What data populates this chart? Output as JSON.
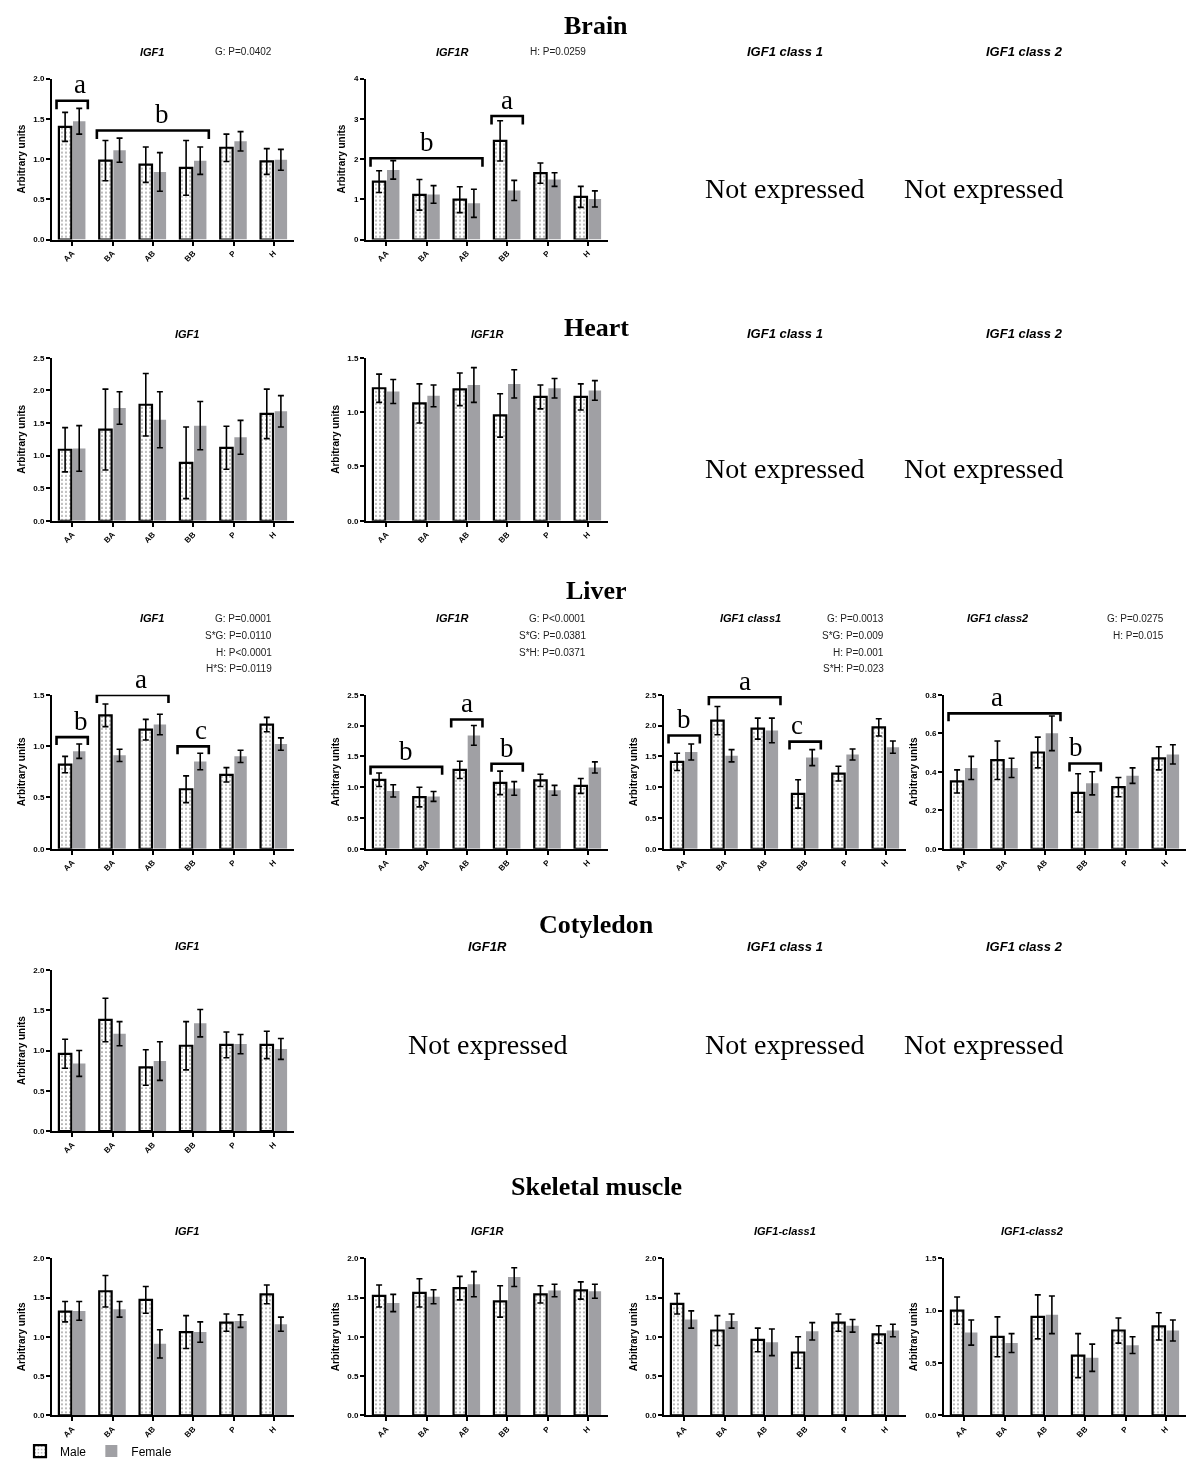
{
  "chart_data": [
    {
      "type": "other",
      "title": "Brain"
    },
    {
      "type": "bar",
      "subtitle": "IGF1",
      "ylabel": "Arbitrary units",
      "categories": [
        "AA",
        "BA",
        "AB",
        "BB",
        "P",
        "H"
      ],
      "ylim": [
        0,
        2
      ],
      "yticks": [
        {
          "value": 0,
          "label": "0.0"
        },
        0.5,
        {
          "value": 1,
          "label": "1.0"
        },
        1.5,
        {
          "value": 2,
          "label": "2.0"
        }
      ],
      "series": [
        {
          "color": "#000000",
          "values": [
            1.4,
            0.98,
            0.93,
            0.89,
            1.14,
            0.97
          ],
          "errors": [
            0.18,
            0.25,
            0.22,
            0.34,
            0.17,
            0.16
          ]
        },
        {
          "color": "#a0a0a4",
          "values": [
            1.47,
            1.11,
            0.84,
            0.98,
            1.22,
            0.99
          ],
          "errors": [
            0.16,
            0.15,
            0.24,
            0.17,
            0.12,
            0.13
          ]
        }
      ],
      "annotations": [
        "G: P=0.0402",
        "a",
        "b"
      ]
    },
    {
      "type": "bar",
      "subtitle": "IGF1R",
      "ylabel": "Arbitrary units",
      "categories": [
        "AA",
        "BA",
        "AB",
        "BB",
        "P",
        "H"
      ],
      "ylim": [
        0,
        4
      ],
      "yticks": [
        0,
        1,
        2,
        3,
        4
      ],
      "series": [
        {
          "color": "#000000",
          "values": [
            1.44,
            1.11,
            0.99,
            2.45,
            1.65,
            1.06
          ],
          "errors": [
            0.27,
            0.38,
            0.32,
            0.5,
            0.25,
            0.26
          ]
        },
        {
          "color": "#a0a0a4",
          "values": [
            1.73,
            1.12,
            0.9,
            1.22,
            1.49,
            1.01
          ],
          "errors": [
            0.23,
            0.22,
            0.35,
            0.25,
            0.17,
            0.2
          ]
        }
      ],
      "annotations": [
        "H: P=0.0259",
        "b",
        "a"
      ]
    },
    {
      "type": "other",
      "subtitle": "IGF1 class 1",
      "annotations": [
        "Not expressed"
      ]
    },
    {
      "type": "other",
      "subtitle": "IGF1 class 2",
      "annotations": [
        "Not expressed"
      ]
    },
    {
      "type": "other",
      "title": "Heart"
    },
    {
      "type": "bar",
      "subtitle": "IGF1",
      "ylabel": "Arbitrary units",
      "categories": [
        "AA",
        "BA",
        "AB",
        "BB",
        "P",
        "H"
      ],
      "ylim": [
        0,
        2.5
      ],
      "yticks": [
        {
          "value": 0,
          "label": "0.0"
        },
        0.5,
        {
          "value": 1,
          "label": "1.0"
        },
        1.5,
        {
          "value": 2,
          "label": "2.0"
        },
        2.5
      ],
      "series": [
        {
          "color": "#000000",
          "values": [
            1.09,
            1.4,
            1.78,
            0.89,
            1.12,
            1.64
          ],
          "errors": [
            0.34,
            0.62,
            0.48,
            0.55,
            0.33,
            0.38
          ]
        },
        {
          "color": "#a0a0a4",
          "values": [
            1.11,
            1.73,
            1.55,
            1.46,
            1.28,
            1.68
          ],
          "errors": [
            0.35,
            0.25,
            0.43,
            0.37,
            0.26,
            0.24
          ]
        }
      ]
    },
    {
      "type": "bar",
      "subtitle": "IGF1R",
      "ylabel": "Arbitrary units",
      "categories": [
        "AA",
        "BA",
        "AB",
        "BB",
        "P",
        "H"
      ],
      "ylim": [
        0,
        1.5
      ],
      "yticks": [
        {
          "value": 0,
          "label": "0.0"
        },
        0.5,
        {
          "value": 1,
          "label": "1.0"
        },
        1.5
      ],
      "series": [
        {
          "color": "#000000",
          "values": [
            1.22,
            1.08,
            1.21,
            0.97,
            1.14,
            1.14
          ],
          "errors": [
            0.13,
            0.18,
            0.15,
            0.2,
            0.11,
            0.12
          ]
        },
        {
          "color": "#a0a0a4",
          "values": [
            1.19,
            1.15,
            1.25,
            1.26,
            1.22,
            1.2
          ],
          "errors": [
            0.11,
            0.1,
            0.16,
            0.13,
            0.09,
            0.09
          ]
        }
      ]
    },
    {
      "type": "other",
      "subtitle": "IGF1 class 1",
      "annotations": [
        "Not expressed"
      ]
    },
    {
      "type": "other",
      "subtitle": "IGF1 class 2",
      "annotations": [
        "Not expressed"
      ]
    },
    {
      "type": "other",
      "title": "Liver"
    },
    {
      "type": "bar",
      "subtitle": "IGF1",
      "ylabel": "Arbitrary units",
      "categories": [
        "AA",
        "BA",
        "AB",
        "BB",
        "P",
        "H"
      ],
      "ylim": [
        0,
        1.5
      ],
      "yticks": [
        {
          "value": 0,
          "label": "0.0"
        },
        0.5,
        {
          "value": 1,
          "label": "1.0"
        },
        1.5
      ],
      "series": [
        {
          "color": "#000000",
          "values": [
            0.82,
            1.3,
            1.16,
            0.58,
            0.72,
            1.21
          ],
          "errors": [
            0.08,
            0.11,
            0.1,
            0.13,
            0.07,
            0.07
          ]
        },
        {
          "color": "#a0a0a4",
          "values": [
            0.95,
            0.91,
            1.21,
            0.85,
            0.9,
            1.02
          ],
          "errors": [
            0.07,
            0.06,
            0.1,
            0.08,
            0.06,
            0.06
          ]
        }
      ],
      "annotations": [
        "G: P=0.0001",
        "S*G: P=0.0110",
        "H: P<0.0001",
        "H*S: P=0.0119",
        "b",
        "a",
        "c"
      ]
    },
    {
      "type": "bar",
      "subtitle": "IGF1R",
      "ylabel": "Arbitrary units",
      "categories": [
        "AA",
        "BA",
        "AB",
        "BB",
        "P",
        "H"
      ],
      "ylim": [
        0,
        2.5
      ],
      "yticks": [
        {
          "value": 0,
          "label": "0.0"
        },
        0.5,
        {
          "value": 1,
          "label": "1.0"
        },
        1.5,
        {
          "value": 2,
          "label": "2.0"
        },
        2.5
      ],
      "series": [
        {
          "color": "#000000",
          "values": [
            1.12,
            0.84,
            1.28,
            1.07,
            1.11,
            1.02
          ],
          "errors": [
            0.11,
            0.16,
            0.14,
            0.19,
            0.1,
            0.12
          ]
        },
        {
          "color": "#a0a0a4",
          "values": [
            0.94,
            0.85,
            1.84,
            0.98,
            0.95,
            1.32
          ],
          "errors": [
            0.1,
            0.08,
            0.16,
            0.11,
            0.08,
            0.09
          ]
        }
      ],
      "annotations": [
        "G: P<0.0001",
        "S*G: P=0.0381",
        "S*H: P=0.0371",
        "b",
        "a",
        "b"
      ]
    },
    {
      "type": "bar",
      "subtitle": "IGF1 class1",
      "ylabel": "Arbitrary units",
      "categories": [
        "AA",
        "BA",
        "AB",
        "BB",
        "P",
        "H"
      ],
      "ylim": [
        0,
        2.5
      ],
      "yticks": [
        {
          "value": 0,
          "label": "0.0"
        },
        0.5,
        {
          "value": 1,
          "label": "1.0"
        },
        1.5,
        {
          "value": 2,
          "label": "2.0"
        },
        2.5
      ],
      "series": [
        {
          "color": "#000000",
          "values": [
            1.41,
            2.08,
            1.95,
            0.89,
            1.22,
            1.97
          ],
          "errors": [
            0.14,
            0.23,
            0.17,
            0.23,
            0.12,
            0.14
          ]
        },
        {
          "color": "#a0a0a4",
          "values": [
            1.57,
            1.51,
            1.92,
            1.48,
            1.53,
            1.65
          ],
          "errors": [
            0.13,
            0.1,
            0.2,
            0.13,
            0.09,
            0.1
          ]
        }
      ],
      "annotations": [
        "G: P=0.0013",
        "S*G: P=0.009",
        "H: P=0.001",
        "S*H: P=0.023",
        "b",
        "a",
        "c"
      ]
    },
    {
      "type": "bar",
      "subtitle": "IGF1 class2",
      "ylabel": "Arbitrary units",
      "categories": [
        "AA",
        "BA",
        "AB",
        "BB",
        "P",
        "H"
      ],
      "ylim": [
        0,
        0.8
      ],
      "yticks": [
        {
          "value": 0,
          "label": "0.0"
        },
        0.2,
        0.4,
        0.6,
        0.8
      ],
      "series": [
        {
          "color": "#000000",
          "values": [
            0.35,
            0.46,
            0.5,
            0.29,
            0.32,
            0.47
          ],
          "errors": [
            0.06,
            0.1,
            0.08,
            0.1,
            0.05,
            0.06
          ]
        },
        {
          "color": "#a0a0a4",
          "values": [
            0.42,
            0.42,
            0.6,
            0.34,
            0.38,
            0.49
          ],
          "errors": [
            0.06,
            0.05,
            0.09,
            0.06,
            0.04,
            0.05
          ]
        }
      ],
      "annotations": [
        "G: P=0.0275",
        "H: P=0.015",
        "a",
        "b"
      ]
    },
    {
      "type": "other",
      "title": "Cotyledon"
    },
    {
      "type": "bar",
      "subtitle": "IGF1",
      "ylabel": "Arbitrary units",
      "categories": [
        "AA",
        "BA",
        "AB",
        "BB",
        "P",
        "H"
      ],
      "ylim": [
        0,
        2
      ],
      "yticks": [
        {
          "value": 0,
          "label": "0.0"
        },
        0.5,
        {
          "value": 1,
          "label": "1.0"
        },
        1.5,
        {
          "value": 2,
          "label": "2.0"
        }
      ],
      "series": [
        {
          "color": "#000000",
          "values": [
            0.96,
            1.38,
            0.79,
            1.06,
            1.07,
            1.07
          ],
          "errors": [
            0.18,
            0.27,
            0.22,
            0.3,
            0.16,
            0.17
          ]
        },
        {
          "color": "#a0a0a4",
          "values": [
            0.84,
            1.21,
            0.87,
            1.34,
            1.08,
            1.02
          ],
          "errors": [
            0.16,
            0.15,
            0.24,
            0.17,
            0.12,
            0.13
          ]
        }
      ]
    },
    {
      "type": "other",
      "subtitle": "IGF1R",
      "annotations": [
        "Not expressed"
      ]
    },
    {
      "type": "other",
      "subtitle": "IGF1 class 1",
      "annotations": [
        "Not expressed"
      ]
    },
    {
      "type": "other",
      "subtitle": "IGF1 class 2",
      "annotations": [
        "Not expressed"
      ]
    },
    {
      "type": "other",
      "title": "Skeletal muscle"
    },
    {
      "type": "bar",
      "subtitle": "IGF1",
      "ylabel": "Arbitrary units",
      "categories": [
        "AA",
        "BA",
        "AB",
        "BB",
        "P",
        "H"
      ],
      "ylim": [
        0,
        2
      ],
      "yticks": [
        {
          "value": 0,
          "label": "0.0"
        },
        0.5,
        {
          "value": 1,
          "label": "1.0"
        },
        1.5,
        {
          "value": 2,
          "label": "2.0"
        }
      ],
      "legend": "bottom left",
      "series": [
        {
          "name": "Male",
          "color": "#000000",
          "values": [
            1.32,
            1.58,
            1.47,
            1.06,
            1.18,
            1.54
          ],
          "errors": [
            0.13,
            0.2,
            0.17,
            0.21,
            0.11,
            0.12
          ]
        },
        {
          "name": "Female",
          "color": "#a0a0a4",
          "values": [
            1.33,
            1.35,
            0.91,
            1.06,
            1.2,
            1.16
          ],
          "errors": [
            0.12,
            0.1,
            0.18,
            0.13,
            0.08,
            0.09
          ]
        }
      ]
    },
    {
      "type": "bar",
      "subtitle": "IGF1R",
      "ylabel": "Arbitrary units",
      "categories": [
        "AA",
        "BA",
        "AB",
        "BB",
        "P",
        "H"
      ],
      "ylim": [
        0,
        2
      ],
      "yticks": [
        {
          "value": 0,
          "label": "0.0"
        },
        0.5,
        {
          "value": 1,
          "label": "1.0"
        },
        1.5,
        {
          "value": 2,
          "label": "2.0"
        }
      ],
      "series": [
        {
          "color": "#000000",
          "values": [
            1.52,
            1.56,
            1.62,
            1.45,
            1.54,
            1.59
          ],
          "errors": [
            0.14,
            0.18,
            0.15,
            0.2,
            0.11,
            0.11
          ]
        },
        {
          "color": "#a0a0a4",
          "values": [
            1.43,
            1.51,
            1.67,
            1.76,
            1.59,
            1.58
          ],
          "errors": [
            0.11,
            0.09,
            0.16,
            0.12,
            0.08,
            0.09
          ]
        }
      ]
    },
    {
      "type": "bar",
      "subtitle": "IGF1-class1",
      "ylabel": "Arbitrary units",
      "categories": [
        "AA",
        "BA",
        "AB",
        "BB",
        "P",
        "H"
      ],
      "ylim": [
        0,
        2
      ],
      "yticks": [
        {
          "value": 0,
          "label": "0.0"
        },
        0.5,
        {
          "value": 1,
          "label": "1.0"
        },
        1.5,
        {
          "value": 2,
          "label": "2.0"
        }
      ],
      "series": [
        {
          "color": "#000000",
          "values": [
            1.42,
            1.08,
            0.96,
            0.8,
            1.18,
            1.03
          ],
          "errors": [
            0.13,
            0.19,
            0.15,
            0.2,
            0.11,
            0.11
          ]
        },
        {
          "color": "#a0a0a4",
          "values": [
            1.22,
            1.2,
            0.93,
            1.07,
            1.14,
            1.08
          ],
          "errors": [
            0.11,
            0.09,
            0.17,
            0.11,
            0.08,
            0.08
          ]
        }
      ]
    },
    {
      "type": "bar",
      "subtitle": "IGF1-class2",
      "ylabel": "Arbitrary units",
      "categories": [
        "AA",
        "BA",
        "AB",
        "BB",
        "P",
        "H"
      ],
      "ylim": [
        0,
        1.5
      ],
      "yticks": [
        {
          "value": 0,
          "label": "0.0"
        },
        0.5,
        {
          "value": 1,
          "label": "1.0"
        },
        1.5
      ],
      "series": [
        {
          "color": "#000000",
          "values": [
            1.0,
            0.75,
            0.94,
            0.57,
            0.81,
            0.85
          ],
          "errors": [
            0.13,
            0.19,
            0.21,
            0.21,
            0.12,
            0.13
          ]
        },
        {
          "color": "#a0a0a4",
          "values": [
            0.79,
            0.69,
            0.96,
            0.55,
            0.67,
            0.81
          ],
          "errors": [
            0.12,
            0.09,
            0.18,
            0.13,
            0.08,
            0.1
          ]
        }
      ]
    }
  ]
}
